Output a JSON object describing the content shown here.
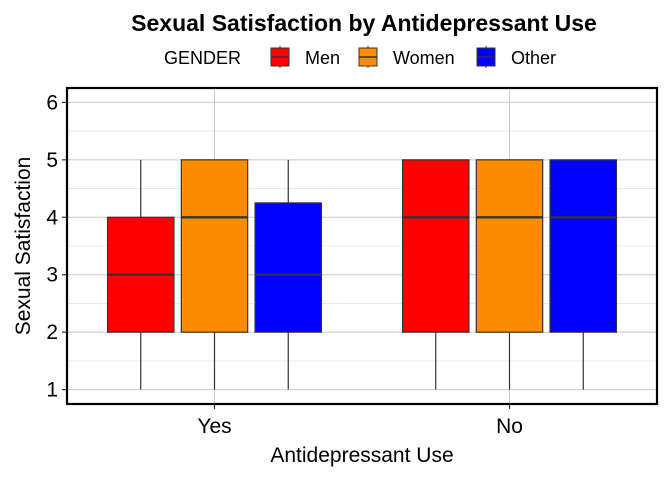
{
  "chart_data": {
    "type": "boxplot",
    "title": "Sexual Satisfaction by Antidepressant Use",
    "xlabel": "Antidepressant Use",
    "ylabel": "Sexual Satisfaction",
    "categories": [
      "Yes",
      "No"
    ],
    "ylim": [
      0.75,
      6.25
    ],
    "yticks": [
      "1",
      "2",
      "3",
      "4",
      "5",
      "6"
    ],
    "grid": true,
    "legend": {
      "title": "GENDER",
      "position": "top"
    },
    "series": [
      {
        "name": "Men",
        "color": "#ff0000",
        "boxes": [
          {
            "min": 1,
            "q1": 2,
            "median": 3,
            "q3": 4,
            "max": 5
          },
          {
            "min": 1,
            "q1": 2,
            "median": 4,
            "q3": 5,
            "max": 5
          }
        ]
      },
      {
        "name": "Women",
        "color": "#ff8c00",
        "boxes": [
          {
            "min": 1,
            "q1": 2,
            "median": 4,
            "q3": 5,
            "max": 5
          },
          {
            "min": 1,
            "q1": 2,
            "median": 4,
            "q3": 5,
            "max": 5
          }
        ]
      },
      {
        "name": "Other",
        "color": "#0000ff",
        "boxes": [
          {
            "min": 1,
            "q1": 2,
            "median": 3,
            "q3": 4.25,
            "max": 5
          },
          {
            "min": 1,
            "q1": 2,
            "median": 4,
            "q3": 5,
            "max": 5
          }
        ]
      }
    ]
  }
}
